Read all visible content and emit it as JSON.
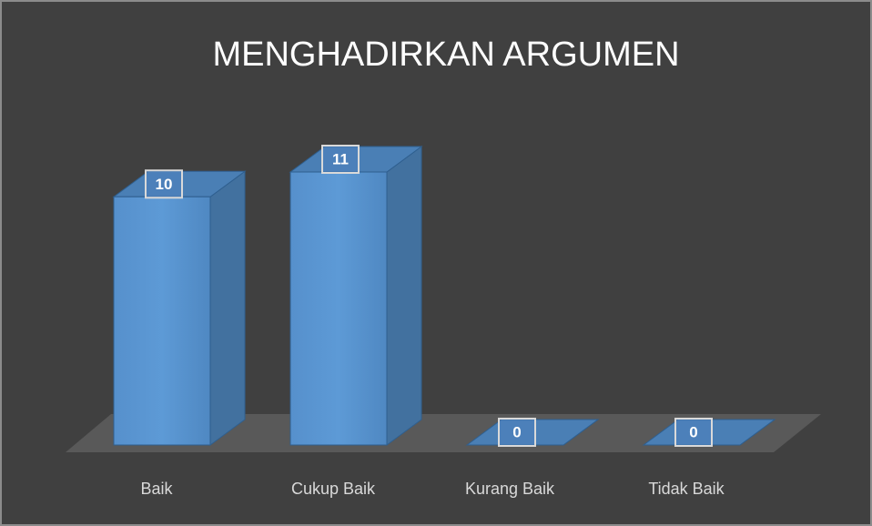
{
  "chart_data": {
    "type": "bar3d",
    "title": "MENGHADIRKAN ARGUMEN",
    "categories": [
      "Baik",
      "Cukup Baik",
      "Kurang Baik",
      "Tidak Baik"
    ],
    "values": [
      10,
      11,
      0,
      0
    ],
    "color": "#5b9bd5"
  }
}
